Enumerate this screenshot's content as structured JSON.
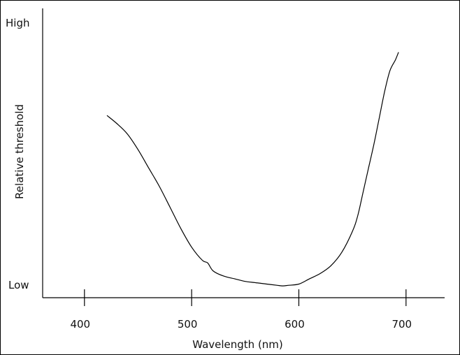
{
  "chart_data": {
    "type": "line",
    "xlabel": "Wavelength (nm)",
    "ylabel": "Relative threshold",
    "y_high_label": "High",
    "y_low_label": "Low",
    "x_ticks": [
      400,
      500,
      600,
      700
    ],
    "xlim": [
      361,
      736
    ],
    "ylim": [
      0,
      1
    ],
    "grid": false,
    "series": [
      {
        "x": [
          421,
          430,
          440,
          450,
          460,
          470,
          480,
          490,
          500,
          510,
          515,
          520,
          530,
          540,
          550,
          560,
          570,
          580,
          585,
          590,
          600,
          610,
          620,
          630,
          640,
          650,
          655,
          660,
          665,
          670,
          675,
          680,
          685,
          690,
          693
        ],
        "y": [
          0.66,
          0.63,
          0.59,
          0.53,
          0.46,
          0.39,
          0.31,
          0.23,
          0.16,
          0.11,
          0.1,
          0.07,
          0.05,
          0.04,
          0.03,
          0.025,
          0.02,
          0.015,
          0.013,
          0.015,
          0.02,
          0.04,
          0.06,
          0.09,
          0.14,
          0.22,
          0.28,
          0.37,
          0.46,
          0.55,
          0.65,
          0.75,
          0.83,
          0.87,
          0.9
        ]
      }
    ]
  }
}
